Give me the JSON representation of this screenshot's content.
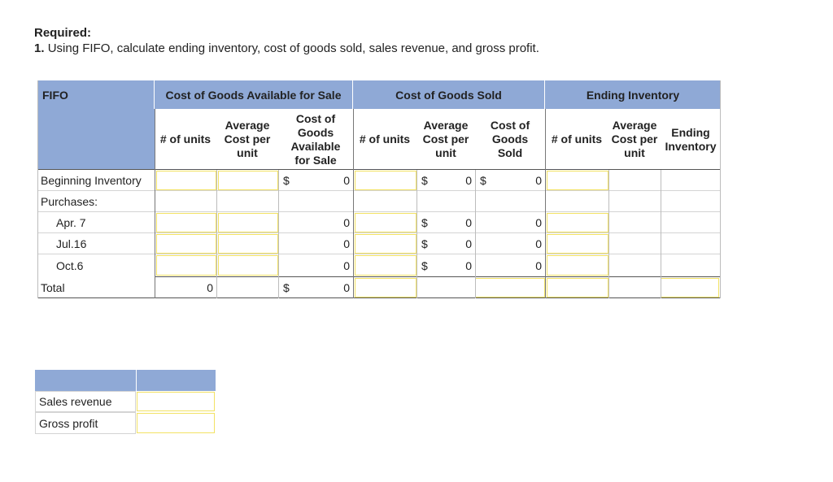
{
  "required": {
    "title": "Required:",
    "number": "1.",
    "instruction": "Using FIFO, calculate ending inventory, cost of goods sold, sales revenue, and gross profit."
  },
  "worksheet": {
    "method_label": "FIFO",
    "groups": {
      "available": "Cost of Goods Available for Sale",
      "sold": "Cost of Goods Sold",
      "ending": "Ending Inventory"
    },
    "columns": {
      "units": "# of units",
      "avg_cost": "Average Cost per unit",
      "cost_available": "Cost of Goods Available for Sale",
      "sold_units": "# of units",
      "sold_avg_cost": "Average Cost per unit",
      "cogs": "Cost of Goods Sold",
      "end_units": "# of units",
      "end_avg_cost": "Average Cost per unit",
      "end_inventory": "Ending Inventory"
    },
    "rows": {
      "beginning": {
        "label": "Beginning Inventory",
        "dollar": "$",
        "cost_available": "0",
        "sold_dollar": "$",
        "sold_avg": "0",
        "cogs_dollar": "$",
        "cogs": "0"
      },
      "purchases": {
        "label": "Purchases:"
      },
      "apr7": {
        "label": "Apr. 7",
        "cost_available": "0",
        "sold_dollar": "$",
        "sold_avg": "0",
        "cogs": "0"
      },
      "jul16": {
        "label": "Jul.16",
        "cost_available": "0",
        "sold_dollar": "$",
        "sold_avg": "0",
        "cogs": "0"
      },
      "oct6": {
        "label": "Oct.6",
        "cost_available": "0",
        "sold_dollar": "$",
        "sold_avg": "0",
        "cogs": "0"
      },
      "total": {
        "label": "Total",
        "units": "0",
        "dollar": "$",
        "cost_available": "0"
      }
    }
  },
  "summary": {
    "sales_revenue_label": "Sales revenue",
    "gross_profit_label": "Gross profit"
  }
}
